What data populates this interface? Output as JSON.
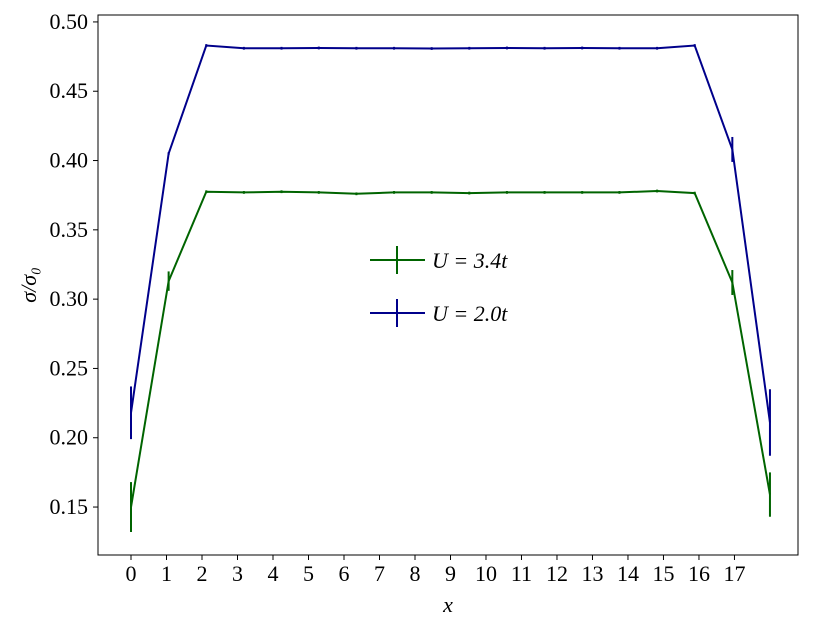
{
  "chart_data": {
    "type": "line",
    "xlabel": "x",
    "ylabel": "σ/σ₀",
    "x": [
      0,
      1.06,
      2.12,
      3.18,
      4.24,
      5.29,
      6.35,
      7.41,
      8.47,
      9.53,
      10.59,
      11.65,
      12.71,
      13.76,
      14.82,
      15.88,
      16.94,
      18.0
    ],
    "series": [
      {
        "name": "U = 3.4t",
        "color": "#006400",
        "values": [
          0.15,
          0.313,
          0.3775,
          0.377,
          0.3775,
          0.377,
          0.376,
          0.377,
          0.377,
          0.3765,
          0.377,
          0.377,
          0.377,
          0.377,
          0.378,
          0.3765,
          0.312,
          0.159
        ],
        "errors": [
          0.018,
          0.007,
          0.001,
          0.001,
          0.001,
          0.001,
          0.001,
          0.001,
          0.001,
          0.001,
          0.001,
          0.001,
          0.001,
          0.001,
          0.001,
          0.001,
          0.009,
          0.016
        ]
      },
      {
        "name": "U = 2.0t",
        "color": "#00008b",
        "values": [
          0.218,
          0.405,
          0.483,
          0.481,
          0.481,
          0.4812,
          0.481,
          0.481,
          0.4808,
          0.481,
          0.4812,
          0.481,
          0.4812,
          0.481,
          0.481,
          0.483,
          0.408,
          0.211
        ],
        "errors": [
          0.019,
          0.001,
          0.001,
          0.001,
          0.001,
          0.001,
          0.001,
          0.001,
          0.001,
          0.001,
          0.001,
          0.001,
          0.001,
          0.001,
          0.001,
          0.001,
          0.009,
          0.024
        ]
      }
    ],
    "xlim": [
      -0.93,
      18.79
    ],
    "ylim": [
      0.1154,
      0.505
    ],
    "xticks": [
      0,
      1,
      2,
      3,
      4,
      5,
      6,
      7,
      8,
      9,
      10,
      11,
      12,
      13,
      14,
      15,
      16,
      17
    ],
    "yticks": [
      {
        "value": 0.15,
        "label": "0.15"
      },
      {
        "value": 0.2,
        "label": "0.20"
      },
      {
        "value": 0.25,
        "label": "0.25"
      },
      {
        "value": 0.3,
        "label": "0.30"
      },
      {
        "value": 0.35,
        "label": "0.35"
      },
      {
        "value": 0.4,
        "label": "0.40"
      },
      {
        "value": 0.45,
        "label": "0.45"
      },
      {
        "value": 0.5,
        "label": "0.50"
      }
    ],
    "legend": "center",
    "grid": false
  }
}
